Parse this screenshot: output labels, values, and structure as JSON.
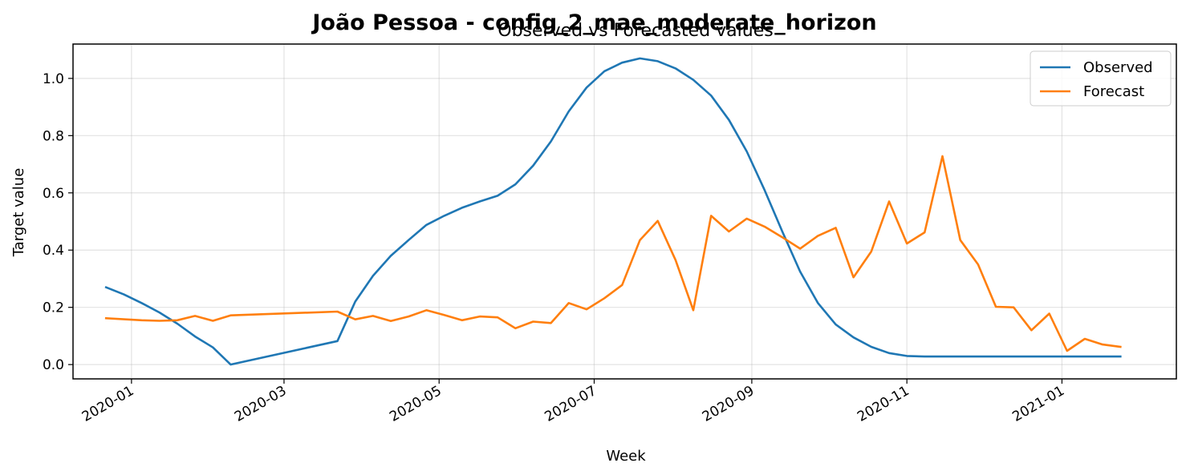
{
  "chart_data": {
    "type": "line",
    "suptitle": "João Pessoa - config_2_mae_moderate_horizon",
    "title": "Observed vs Forecasted values",
    "xlabel": "Week",
    "ylabel": "Target value",
    "ylim": [
      -0.05,
      1.12
    ],
    "yticks": [
      0.0,
      0.2,
      0.4,
      0.6,
      0.8,
      1.0
    ],
    "ytick_labels": [
      "0.0",
      "0.2",
      "0.4",
      "0.6",
      "0.8",
      "1.0"
    ],
    "xlim": [
      "2019-12-09",
      "2021-02-15"
    ],
    "xticks": [
      "2020-01-01",
      "2020-03-01",
      "2020-05-01",
      "2020-07-01",
      "2020-09-01",
      "2020-11-01",
      "2021-01-01"
    ],
    "xtick_labels": [
      "2020-01",
      "2020-03",
      "2020-05",
      "2020-07",
      "2020-09",
      "2020-11",
      "2021-01"
    ],
    "grid": true,
    "legend_position": "top-right",
    "colors": {
      "Observed": "#1f77b4",
      "Forecast": "#ff7f0e"
    },
    "series": [
      {
        "name": "Observed",
        "points": [
          [
            "2019-12-22",
            0.27
          ],
          [
            "2019-12-29",
            0.245
          ],
          [
            "2020-01-05",
            0.215
          ],
          [
            "2020-01-12",
            0.182
          ],
          [
            "2020-01-19",
            0.143
          ],
          [
            "2020-01-26",
            0.098
          ],
          [
            "2020-02-02",
            0.06
          ],
          [
            "2020-02-09",
            0.0
          ],
          [
            "2020-03-22",
            0.082
          ],
          [
            "2020-03-29",
            0.22
          ],
          [
            "2020-04-05",
            0.31
          ],
          [
            "2020-04-12",
            0.38
          ],
          [
            "2020-04-19",
            0.435
          ],
          [
            "2020-04-26",
            0.488
          ],
          [
            "2020-05-03",
            0.52
          ],
          [
            "2020-05-10",
            0.548
          ],
          [
            "2020-05-17",
            0.57
          ],
          [
            "2020-05-24",
            0.59
          ],
          [
            "2020-05-31",
            0.63
          ],
          [
            "2020-06-07",
            0.695
          ],
          [
            "2020-06-14",
            0.78
          ],
          [
            "2020-06-21",
            0.885
          ],
          [
            "2020-06-28",
            0.968
          ],
          [
            "2020-07-05",
            1.025
          ],
          [
            "2020-07-12",
            1.055
          ],
          [
            "2020-07-19",
            1.07
          ],
          [
            "2020-07-26",
            1.06
          ],
          [
            "2020-08-02",
            1.035
          ],
          [
            "2020-08-09",
            0.995
          ],
          [
            "2020-08-16",
            0.94
          ],
          [
            "2020-08-23",
            0.855
          ],
          [
            "2020-08-30",
            0.745
          ],
          [
            "2020-09-06",
            0.61
          ],
          [
            "2020-09-13",
            0.465
          ],
          [
            "2020-09-20",
            0.325
          ],
          [
            "2020-09-27",
            0.215
          ],
          [
            "2020-10-04",
            0.14
          ],
          [
            "2020-10-11",
            0.095
          ],
          [
            "2020-10-18",
            0.062
          ],
          [
            "2020-10-25",
            0.04
          ],
          [
            "2020-11-01",
            0.03
          ],
          [
            "2020-11-08",
            0.028
          ],
          [
            "2020-11-15",
            0.028
          ],
          [
            "2020-11-22",
            0.028
          ],
          [
            "2020-11-29",
            0.028
          ],
          [
            "2020-12-06",
            0.028
          ],
          [
            "2020-12-13",
            0.028
          ],
          [
            "2020-12-20",
            0.028
          ],
          [
            "2020-12-27",
            0.028
          ],
          [
            "2021-01-03",
            0.028
          ],
          [
            "2021-01-10",
            0.028
          ],
          [
            "2021-01-17",
            0.028
          ],
          [
            "2021-01-24",
            0.028
          ]
        ]
      },
      {
        "name": "Forecast",
        "points": [
          [
            "2019-12-22",
            0.162
          ],
          [
            "2020-01-05",
            0.155
          ],
          [
            "2020-01-12",
            0.153
          ],
          [
            "2020-01-19",
            0.155
          ],
          [
            "2020-01-26",
            0.17
          ],
          [
            "2020-02-02",
            0.153
          ],
          [
            "2020-02-09",
            0.172
          ],
          [
            "2020-03-22",
            0.185
          ],
          [
            "2020-03-29",
            0.158
          ],
          [
            "2020-04-05",
            0.17
          ],
          [
            "2020-04-12",
            0.152
          ],
          [
            "2020-04-19",
            0.168
          ],
          [
            "2020-04-26",
            0.19
          ],
          [
            "2020-05-03",
            0.173
          ],
          [
            "2020-05-10",
            0.155
          ],
          [
            "2020-05-17",
            0.168
          ],
          [
            "2020-05-24",
            0.165
          ],
          [
            "2020-05-31",
            0.127
          ],
          [
            "2020-06-07",
            0.15
          ],
          [
            "2020-06-14",
            0.145
          ],
          [
            "2020-06-21",
            0.215
          ],
          [
            "2020-06-28",
            0.193
          ],
          [
            "2020-07-05",
            0.232
          ],
          [
            "2020-07-12",
            0.278
          ],
          [
            "2020-07-19",
            0.435
          ],
          [
            "2020-07-26",
            0.502
          ],
          [
            "2020-08-02",
            0.365
          ],
          [
            "2020-08-09",
            0.19
          ],
          [
            "2020-08-16",
            0.52
          ],
          [
            "2020-08-23",
            0.465
          ],
          [
            "2020-08-30",
            0.51
          ],
          [
            "2020-09-06",
            0.482
          ],
          [
            "2020-09-13",
            0.445
          ],
          [
            "2020-09-20",
            0.405
          ],
          [
            "2020-09-27",
            0.45
          ],
          [
            "2020-10-04",
            0.478
          ],
          [
            "2020-10-11",
            0.305
          ],
          [
            "2020-10-18",
            0.395
          ],
          [
            "2020-10-25",
            0.57
          ],
          [
            "2020-11-01",
            0.423
          ],
          [
            "2020-11-08",
            0.462
          ],
          [
            "2020-11-15",
            0.728
          ],
          [
            "2020-11-22",
            0.435
          ],
          [
            "2020-11-29",
            0.35
          ],
          [
            "2020-12-06",
            0.202
          ],
          [
            "2020-12-13",
            0.2
          ],
          [
            "2020-12-20",
            0.12
          ],
          [
            "2020-12-27",
            0.178
          ],
          [
            "2021-01-03",
            0.048
          ],
          [
            "2021-01-10",
            0.09
          ],
          [
            "2021-01-17",
            0.07
          ],
          [
            "2021-01-24",
            0.062
          ]
        ]
      }
    ]
  }
}
